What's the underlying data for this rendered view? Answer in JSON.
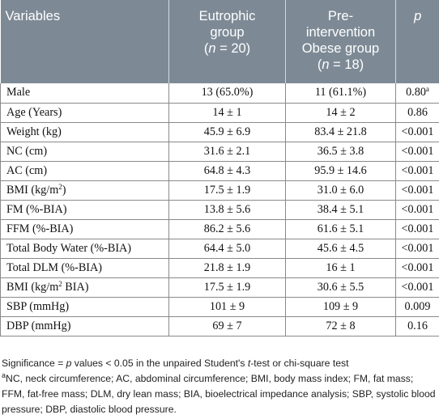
{
  "table": {
    "headers": {
      "variables": "Variables",
      "eutrophic_line1": "Eutrophic",
      "eutrophic_line2": "group",
      "eutrophic_n_prefix": "(",
      "eutrophic_n_var": "n",
      "eutrophic_n_suffix": " = 20)",
      "obese_line1": "Pre-",
      "obese_line2": "intervention",
      "obese_line3": "Obese group",
      "obese_n_prefix": "(",
      "obese_n_var": "n",
      "obese_n_suffix": " = 18)",
      "p": "p"
    },
    "rows": [
      {
        "variable": "Male",
        "var_sup": "",
        "var_suffix": "",
        "eutrophic": "13 (65.0%)",
        "obese": "11 (61.1%)",
        "p": "0.80",
        "p_sup": "a"
      },
      {
        "variable": "Age (Years)",
        "var_sup": "",
        "var_suffix": "",
        "eutrophic": "14 ± 1",
        "obese": "14 ± 2",
        "p": "0.86",
        "p_sup": ""
      },
      {
        "variable": "Weight (kg)",
        "var_sup": "",
        "var_suffix": "",
        "eutrophic": "45.9 ± 6.9",
        "obese": "83.4 ± 21.8",
        "p": "<0.001",
        "p_sup": ""
      },
      {
        "variable": "NC (cm)",
        "var_sup": "",
        "var_suffix": "",
        "eutrophic": "31.6 ± 2.1",
        "obese": "36.5 ± 3.8",
        "p": "<0.001",
        "p_sup": ""
      },
      {
        "variable": "AC (cm)",
        "var_sup": "",
        "var_suffix": "",
        "eutrophic": "64.8 ± 4.3",
        "obese": "95.9 ± 14.6",
        "p": "<0.001",
        "p_sup": ""
      },
      {
        "variable": "BMI (kg/m",
        "var_sup": "2",
        "var_suffix": ")",
        "eutrophic": "17.5 ± 1.9",
        "obese": "31.0 ± 6.0",
        "p": "<0.001",
        "p_sup": ""
      },
      {
        "variable": "FM (%-BIA)",
        "var_sup": "",
        "var_suffix": "",
        "eutrophic": "13.8 ± 5.6",
        "obese": "38.4 ± 5.1",
        "p": "<0.001",
        "p_sup": ""
      },
      {
        "variable": "FFM (%-BIA)",
        "var_sup": "",
        "var_suffix": "",
        "eutrophic": "86.2 ± 5.6",
        "obese": "61.6 ± 5.1",
        "p": "<0.001",
        "p_sup": ""
      },
      {
        "variable": "Total Body Water (%-BIA)",
        "var_sup": "",
        "var_suffix": "",
        "eutrophic": "64.4 ± 5.0",
        "obese": "45.6 ± 4.5",
        "p": "<0.001",
        "p_sup": ""
      },
      {
        "variable": "Total DLM (%-BIA)",
        "var_sup": "",
        "var_suffix": "",
        "eutrophic": "21.8 ± 1.9",
        "obese": "16 ± 1",
        "p": "<0.001",
        "p_sup": ""
      },
      {
        "variable": "BMI (kg/m",
        "var_sup": "2",
        "var_suffix": " BIA)",
        "eutrophic": "17.5 ± 1.9",
        "obese": "30.6 ± 5.5",
        "p": "<0.001",
        "p_sup": ""
      },
      {
        "variable": "SBP (mmHg)",
        "var_sup": "",
        "var_suffix": "",
        "eutrophic": "101 ± 9",
        "obese": "109 ± 9",
        "p": "0.009",
        "p_sup": ""
      },
      {
        "variable": "DBP (mmHg)",
        "var_sup": "",
        "var_suffix": "",
        "eutrophic": "69 ± 7",
        "obese": "72 ± 8",
        "p": "0.16",
        "p_sup": ""
      }
    ]
  },
  "notes": {
    "significance_pre": "Significance = ",
    "significance_var": "p",
    "significance_mid": " values < 0.05 in the unpaired Student's ",
    "significance_t": "t",
    "significance_post": "-test or chi-square test",
    "footnote_mark": "a",
    "footnote_text": "NC, neck circumference; AC, abdominal circumference; BMI, body mass index; FM, fat mass; FFM, fat-free mass; DLM, dry lean mass; BIA, bioelectrical impedance analysis; SBP, systolic blood pressure; DBP, diastolic blood pressure."
  },
  "colors": {
    "header_bg": "#7d8a96",
    "header_text": "#ffffff",
    "border": "#8a8a8a"
  }
}
